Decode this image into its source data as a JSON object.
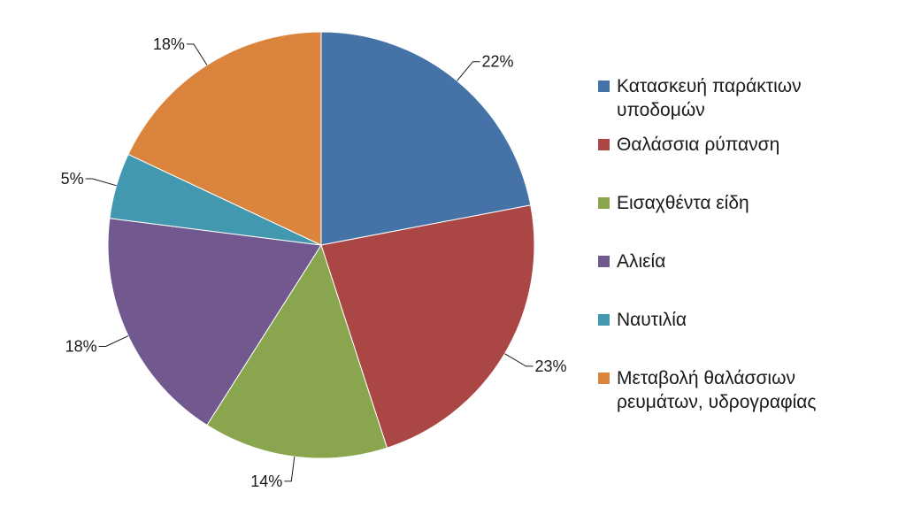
{
  "chart_data": {
    "type": "pie",
    "categories": [
      "Κατασκευή παράκτιων\nυποδομών",
      "Θαλάσσια ρύπανση",
      "Εισαχθέντα είδη",
      "Αλιεία",
      "Ναυτιλία",
      "Μεταβολή θαλάσσιων\nρευμάτων, υδρογραφίας"
    ],
    "values": [
      22,
      23,
      14,
      18,
      5,
      18
    ],
    "labels": [
      "22%",
      "23%",
      "14%",
      "18%",
      "5%",
      "18%"
    ],
    "colors": [
      "#4572a7",
      "#aa4643",
      "#89a54e",
      "#71588f",
      "#4198af",
      "#db843d"
    ],
    "legend_position": "right"
  }
}
